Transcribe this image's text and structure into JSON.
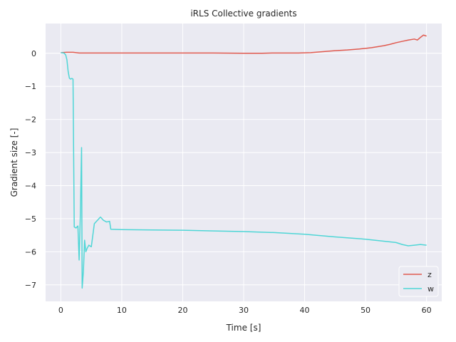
{
  "chart_data": {
    "type": "line",
    "title": "iRLS Collective gradients",
    "xlabel": "Time [s]",
    "ylabel": "Gradient size [-]",
    "xlim": [
      -2.5,
      62.5
    ],
    "ylim": [
      -7.5,
      0.9
    ],
    "xticks": [
      0,
      10,
      20,
      30,
      40,
      50,
      60
    ],
    "yticks": [
      0,
      -1,
      -2,
      -3,
      -4,
      -5,
      -6,
      -7
    ],
    "grid": true,
    "legend": "bottom-right",
    "series": [
      {
        "name": "z",
        "color": "#e05a4f",
        "x": [
          0,
          1,
          2,
          3,
          5,
          10,
          15,
          20,
          25,
          30,
          33,
          35,
          37,
          39,
          41,
          43,
          45,
          47,
          49,
          50,
          51,
          52,
          53,
          54,
          55,
          56,
          57,
          58,
          58.5,
          59,
          59.5,
          60
        ],
        "y": [
          0.02,
          0.03,
          0.03,
          0.01,
          0.01,
          0.01,
          0.01,
          0.01,
          0.01,
          0.0,
          0.0,
          0.01,
          0.01,
          0.01,
          0.02,
          0.05,
          0.08,
          0.1,
          0.13,
          0.15,
          0.17,
          0.2,
          0.23,
          0.27,
          0.32,
          0.36,
          0.4,
          0.43,
          0.4,
          0.48,
          0.55,
          0.52
        ]
      },
      {
        "name": "w",
        "color": "#4fd6d6",
        "x": [
          0,
          0.5,
          0.8,
          1,
          1.2,
          1.4,
          1.6,
          1.8,
          2,
          2.2,
          2.5,
          2.8,
          3,
          3.2,
          3.4,
          3.5,
          3.7,
          3.9,
          4.1,
          4.3,
          4.6,
          5,
          5.5,
          6,
          6.5,
          7,
          7.5,
          8,
          8.2,
          10,
          15,
          20,
          25,
          30,
          35,
          40,
          45,
          50,
          55,
          56,
          57,
          58,
          59,
          60
        ],
        "y": [
          0.02,
          0.01,
          -0.05,
          -0.2,
          -0.55,
          -0.75,
          -0.78,
          -0.76,
          -0.78,
          -5.25,
          -5.28,
          -5.22,
          -6.25,
          -4.9,
          -2.85,
          -7.1,
          -6.6,
          -5.65,
          -6.0,
          -5.9,
          -5.8,
          -5.85,
          -5.15,
          -5.05,
          -4.95,
          -5.05,
          -5.1,
          -5.08,
          -5.32,
          -5.33,
          -5.34,
          -5.35,
          -5.37,
          -5.39,
          -5.42,
          -5.47,
          -5.55,
          -5.62,
          -5.72,
          -5.78,
          -5.82,
          -5.8,
          -5.78,
          -5.8
        ]
      }
    ]
  }
}
